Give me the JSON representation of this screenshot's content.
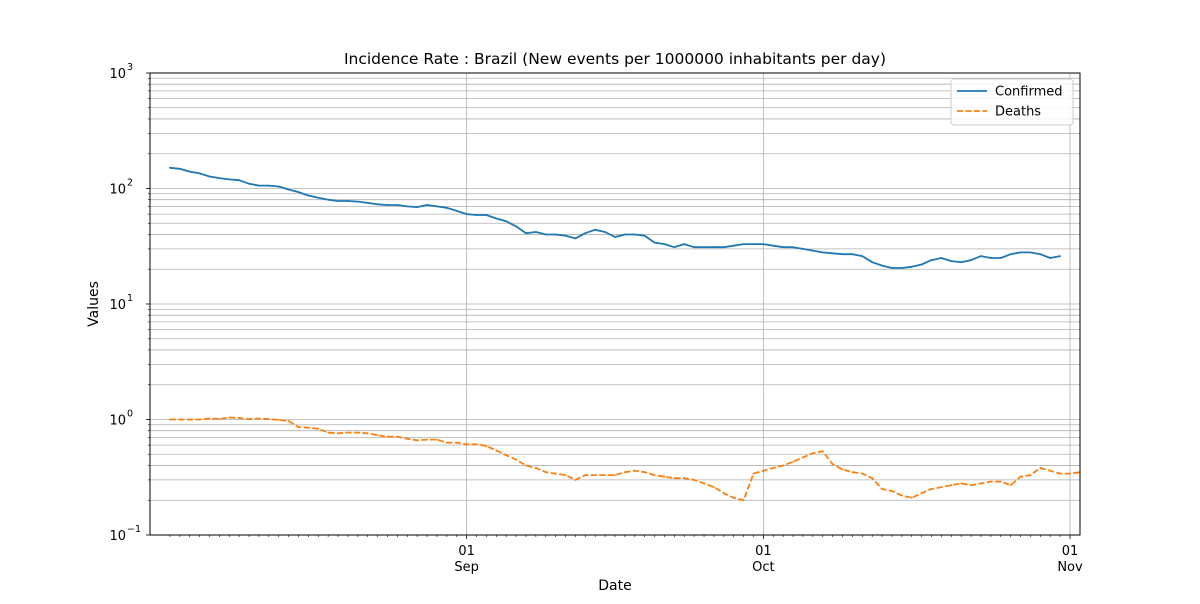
{
  "chart_data": {
    "type": "line",
    "title": "Incidence Rate : Brazil  (New events per 1000000 inhabitants per day)",
    "xlabel": "Date",
    "ylabel": "Values",
    "y_scale": "log",
    "ylim": [
      0.1,
      1000
    ],
    "xlim": [
      "2020-08-01",
      "2020-11-01"
    ],
    "grid": true,
    "legend_position": "top-right",
    "x_ticks": [
      {
        "date": "2020-09-01",
        "day": "01",
        "month": "Sep"
      },
      {
        "date": "2020-10-01",
        "day": "01",
        "month": "Oct"
      },
      {
        "date": "2020-11-01",
        "day": "01",
        "month": "Nov"
      }
    ],
    "y_ticks": [
      {
        "value": 0.1,
        "base": "10",
        "exp": "−1"
      },
      {
        "value": 1,
        "base": "10",
        "exp": "0"
      },
      {
        "value": 10,
        "base": "10",
        "exp": "1"
      },
      {
        "value": 100,
        "base": "10",
        "exp": "2"
      },
      {
        "value": 1000,
        "base": "10",
        "exp": "3"
      }
    ],
    "x_start": "2020-08-02",
    "series": [
      {
        "name": "Confirmed",
        "color": "#1f77b4",
        "style": "solid",
        "values": [
          151,
          148,
          140,
          135,
          127,
          123,
          120,
          118,
          110,
          106,
          106,
          104,
          98,
          93,
          87,
          83,
          80,
          78,
          78,
          77,
          75,
          73,
          72,
          72,
          70,
          69,
          72,
          70,
          68,
          64,
          60,
          59,
          59,
          55,
          52,
          47,
          41,
          42,
          40,
          40,
          39,
          37,
          41,
          44,
          42,
          38,
          40,
          40,
          39,
          34,
          33,
          31,
          33,
          31,
          31,
          31,
          31,
          32,
          33,
          33,
          33,
          32,
          31,
          31,
          30,
          29,
          28,
          27.5,
          27,
          27,
          26,
          23,
          21.5,
          20.5,
          20.5,
          21,
          22,
          24,
          25,
          23.5,
          23,
          24,
          26,
          25,
          25,
          27,
          28,
          28,
          27,
          25,
          26
        ]
      },
      {
        "name": "Deaths",
        "color": "#ff7f0e",
        "style": "dashed",
        "values": [
          1.0,
          1.0,
          1.0,
          1.0,
          1.02,
          1.01,
          1.04,
          1.03,
          1.01,
          1.02,
          1.01,
          0.99,
          0.97,
          0.86,
          0.85,
          0.83,
          0.77,
          0.76,
          0.77,
          0.77,
          0.76,
          0.73,
          0.71,
          0.71,
          0.68,
          0.66,
          0.67,
          0.67,
          0.63,
          0.63,
          0.61,
          0.61,
          0.59,
          0.54,
          0.49,
          0.45,
          0.4,
          0.38,
          0.35,
          0.34,
          0.33,
          0.3,
          0.33,
          0.33,
          0.33,
          0.33,
          0.35,
          0.36,
          0.35,
          0.33,
          0.32,
          0.31,
          0.31,
          0.3,
          0.28,
          0.26,
          0.23,
          0.21,
          0.2,
          0.34,
          0.36,
          0.38,
          0.4,
          0.43,
          0.47,
          0.51,
          0.53,
          0.41,
          0.37,
          0.35,
          0.34,
          0.31,
          0.25,
          0.24,
          0.22,
          0.21,
          0.23,
          0.25,
          0.26,
          0.27,
          0.28,
          0.27,
          0.28,
          0.29,
          0.29,
          0.27,
          0.32,
          0.33,
          0.38,
          0.36,
          0.34,
          0.34,
          0.35
        ]
      }
    ]
  }
}
